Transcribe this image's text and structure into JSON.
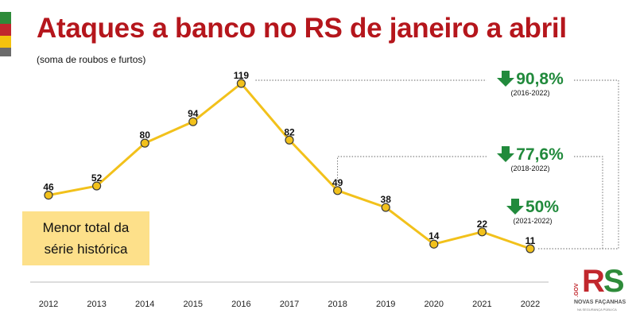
{
  "header": {
    "title": "Ataques a banco no RS de janeiro a abril",
    "subtitle": "(soma de roubos e furtos)"
  },
  "note": {
    "line1": "Menor total da",
    "line2": "série histórica"
  },
  "callouts": [
    {
      "pct": "90,8%",
      "range": "(2016-2022)",
      "icon": "down-arrow-icon"
    },
    {
      "pct": "77,6%",
      "range": "(2018-2022)",
      "icon": "down-arrow-icon"
    },
    {
      "pct": "50%",
      "range": "(2021-2022)",
      "icon": "down-arrow-icon"
    }
  ],
  "logo": {
    "gov": ".GOV",
    "rs_r": "R",
    "rs_s": "S",
    "tagline": "NOVAS FAÇANHAS",
    "subtag": "NA SEGURANÇA PÚBLICA"
  },
  "colors": {
    "title": "#b5161c",
    "line": "#f2c11b",
    "marker_fill": "#f2c11b",
    "marker_stroke": "#3a3a3a",
    "callout": "#218a3c",
    "note_bg": "#fde08a"
  },
  "chart_data": {
    "type": "line",
    "title": "Ataques a banco no RS de janeiro a abril",
    "subtitle": "(soma de roubos e furtos)",
    "x": [
      "2012",
      "2013",
      "2014",
      "2015",
      "2016",
      "2017",
      "2018",
      "2019",
      "2020",
      "2021",
      "2022"
    ],
    "values": [
      46,
      52,
      80,
      94,
      119,
      82,
      49,
      38,
      14,
      22,
      11
    ],
    "ylim": [
      0,
      125
    ],
    "grid": false,
    "legend": "none",
    "data_labels": true
  }
}
